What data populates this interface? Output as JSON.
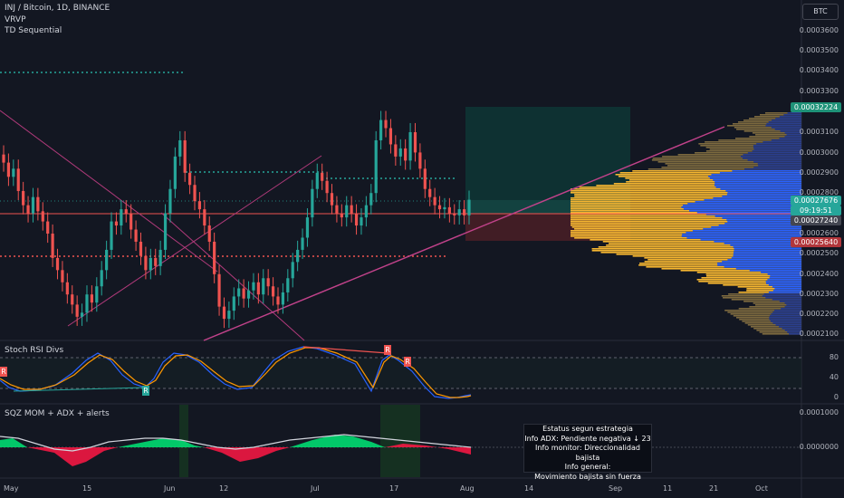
{
  "legend": {
    "symbol": "INJ / Bitcoin, 1D, BINANCE",
    "vrvp": "VRVP",
    "td": "TD Sequential"
  },
  "currency_button": "BTC",
  "price_axis": [
    "0.0003600",
    "0.0003500",
    "0.0003400",
    "0.0003300",
    "0.0003100",
    "0.0003000",
    "0.0002900",
    "0.0002800",
    "0.0002600",
    "0.0002500",
    "0.0002400",
    "0.0002300",
    "0.0002200",
    "0.0002100"
  ],
  "badges": {
    "target": "0.00032224",
    "current": "0.00027676",
    "countdown": "09:19:51",
    "entry": "0.00027240",
    "stop": "0.00025640"
  },
  "colors": {
    "background": "#131722",
    "up": "#26a69a",
    "down": "#ef5350",
    "vp_blue": "#2962ff",
    "vp_orange": "#f7b731",
    "target_green": "#1e9278",
    "stop_red": "#b2363b"
  },
  "stoch_panel": {
    "title": "Stoch RSI Divs",
    "levels": [
      "80",
      "40",
      "0"
    ],
    "markers": [
      "R",
      "R",
      "R",
      "R"
    ]
  },
  "momentum_panel": {
    "title": "SQZ MOM + ADX + alerts",
    "levels": [
      "0.0001000",
      "0.0000000"
    ]
  },
  "status_box": {
    "line1": "Estatus segun estrategia",
    "line2": "Info ADX: Pendiente negativa ↓ 23",
    "line3": "Info monitor: Direccionalidad bajista",
    "line4": "Info general:",
    "line5": "Movimiento bajista sin fuerza"
  },
  "time_axis": [
    "May",
    "15",
    "Jun",
    "12",
    "Jul",
    "17",
    "Aug",
    "14",
    "Sep",
    "11",
    "21",
    "Oct"
  ],
  "chart_data": {
    "type": "candlestick",
    "symbol": "INJ / Bitcoin",
    "interval": "1D",
    "exchange": "BINANCE",
    "y_axis_range": [
      0.00021,
      0.00036
    ],
    "closes": [
      0.000295,
      0.000288,
      0.000292,
      0.000281,
      0.000274,
      0.00027,
      0.000278,
      0.000271,
      0.000266,
      0.00026,
      0.000248,
      0.000242,
      0.000236,
      0.00023,
      0.000225,
      0.000219,
      0.000221,
      0.00023,
      0.000226,
      0.000234,
      0.000242,
      0.000252,
      0.000266,
      0.000264,
      0.000272,
      0.00027,
      0.000262,
      0.000256,
      0.000249,
      0.000242,
      0.000248,
      0.000244,
      0.000252,
      0.00027,
      0.000282,
      0.000298,
      0.000306,
      0.00029,
      0.000284,
      0.000276,
      0.000272,
      0.000264,
      0.000256,
      0.00024,
      0.000224,
      0.000218,
      0.000222,
      0.000229,
      0.000233,
      0.000228,
      0.000232,
      0.000236,
      0.00023,
      0.000238,
      0.000234,
      0.000229,
      0.000225,
      0.000231,
      0.000238,
      0.000246,
      0.000252,
      0.000258,
      0.000268,
      0.000282,
      0.00029,
      0.000286,
      0.00028,
      0.000274,
      0.00027,
      0.000268,
      0.000274,
      0.00027,
      0.000264,
      0.000268,
      0.000274,
      0.00028,
      0.000306,
      0.000316,
      0.000312,
      0.000304,
      0.000298,
      0.000302,
      0.000296,
      0.00031,
      0.0003,
      0.000292,
      0.000282,
      0.000278,
      0.000274,
      0.000272,
      0.000273,
      0.00027,
      0.000269,
      0.000272,
      0.000269,
      0.0002767
    ]
  }
}
